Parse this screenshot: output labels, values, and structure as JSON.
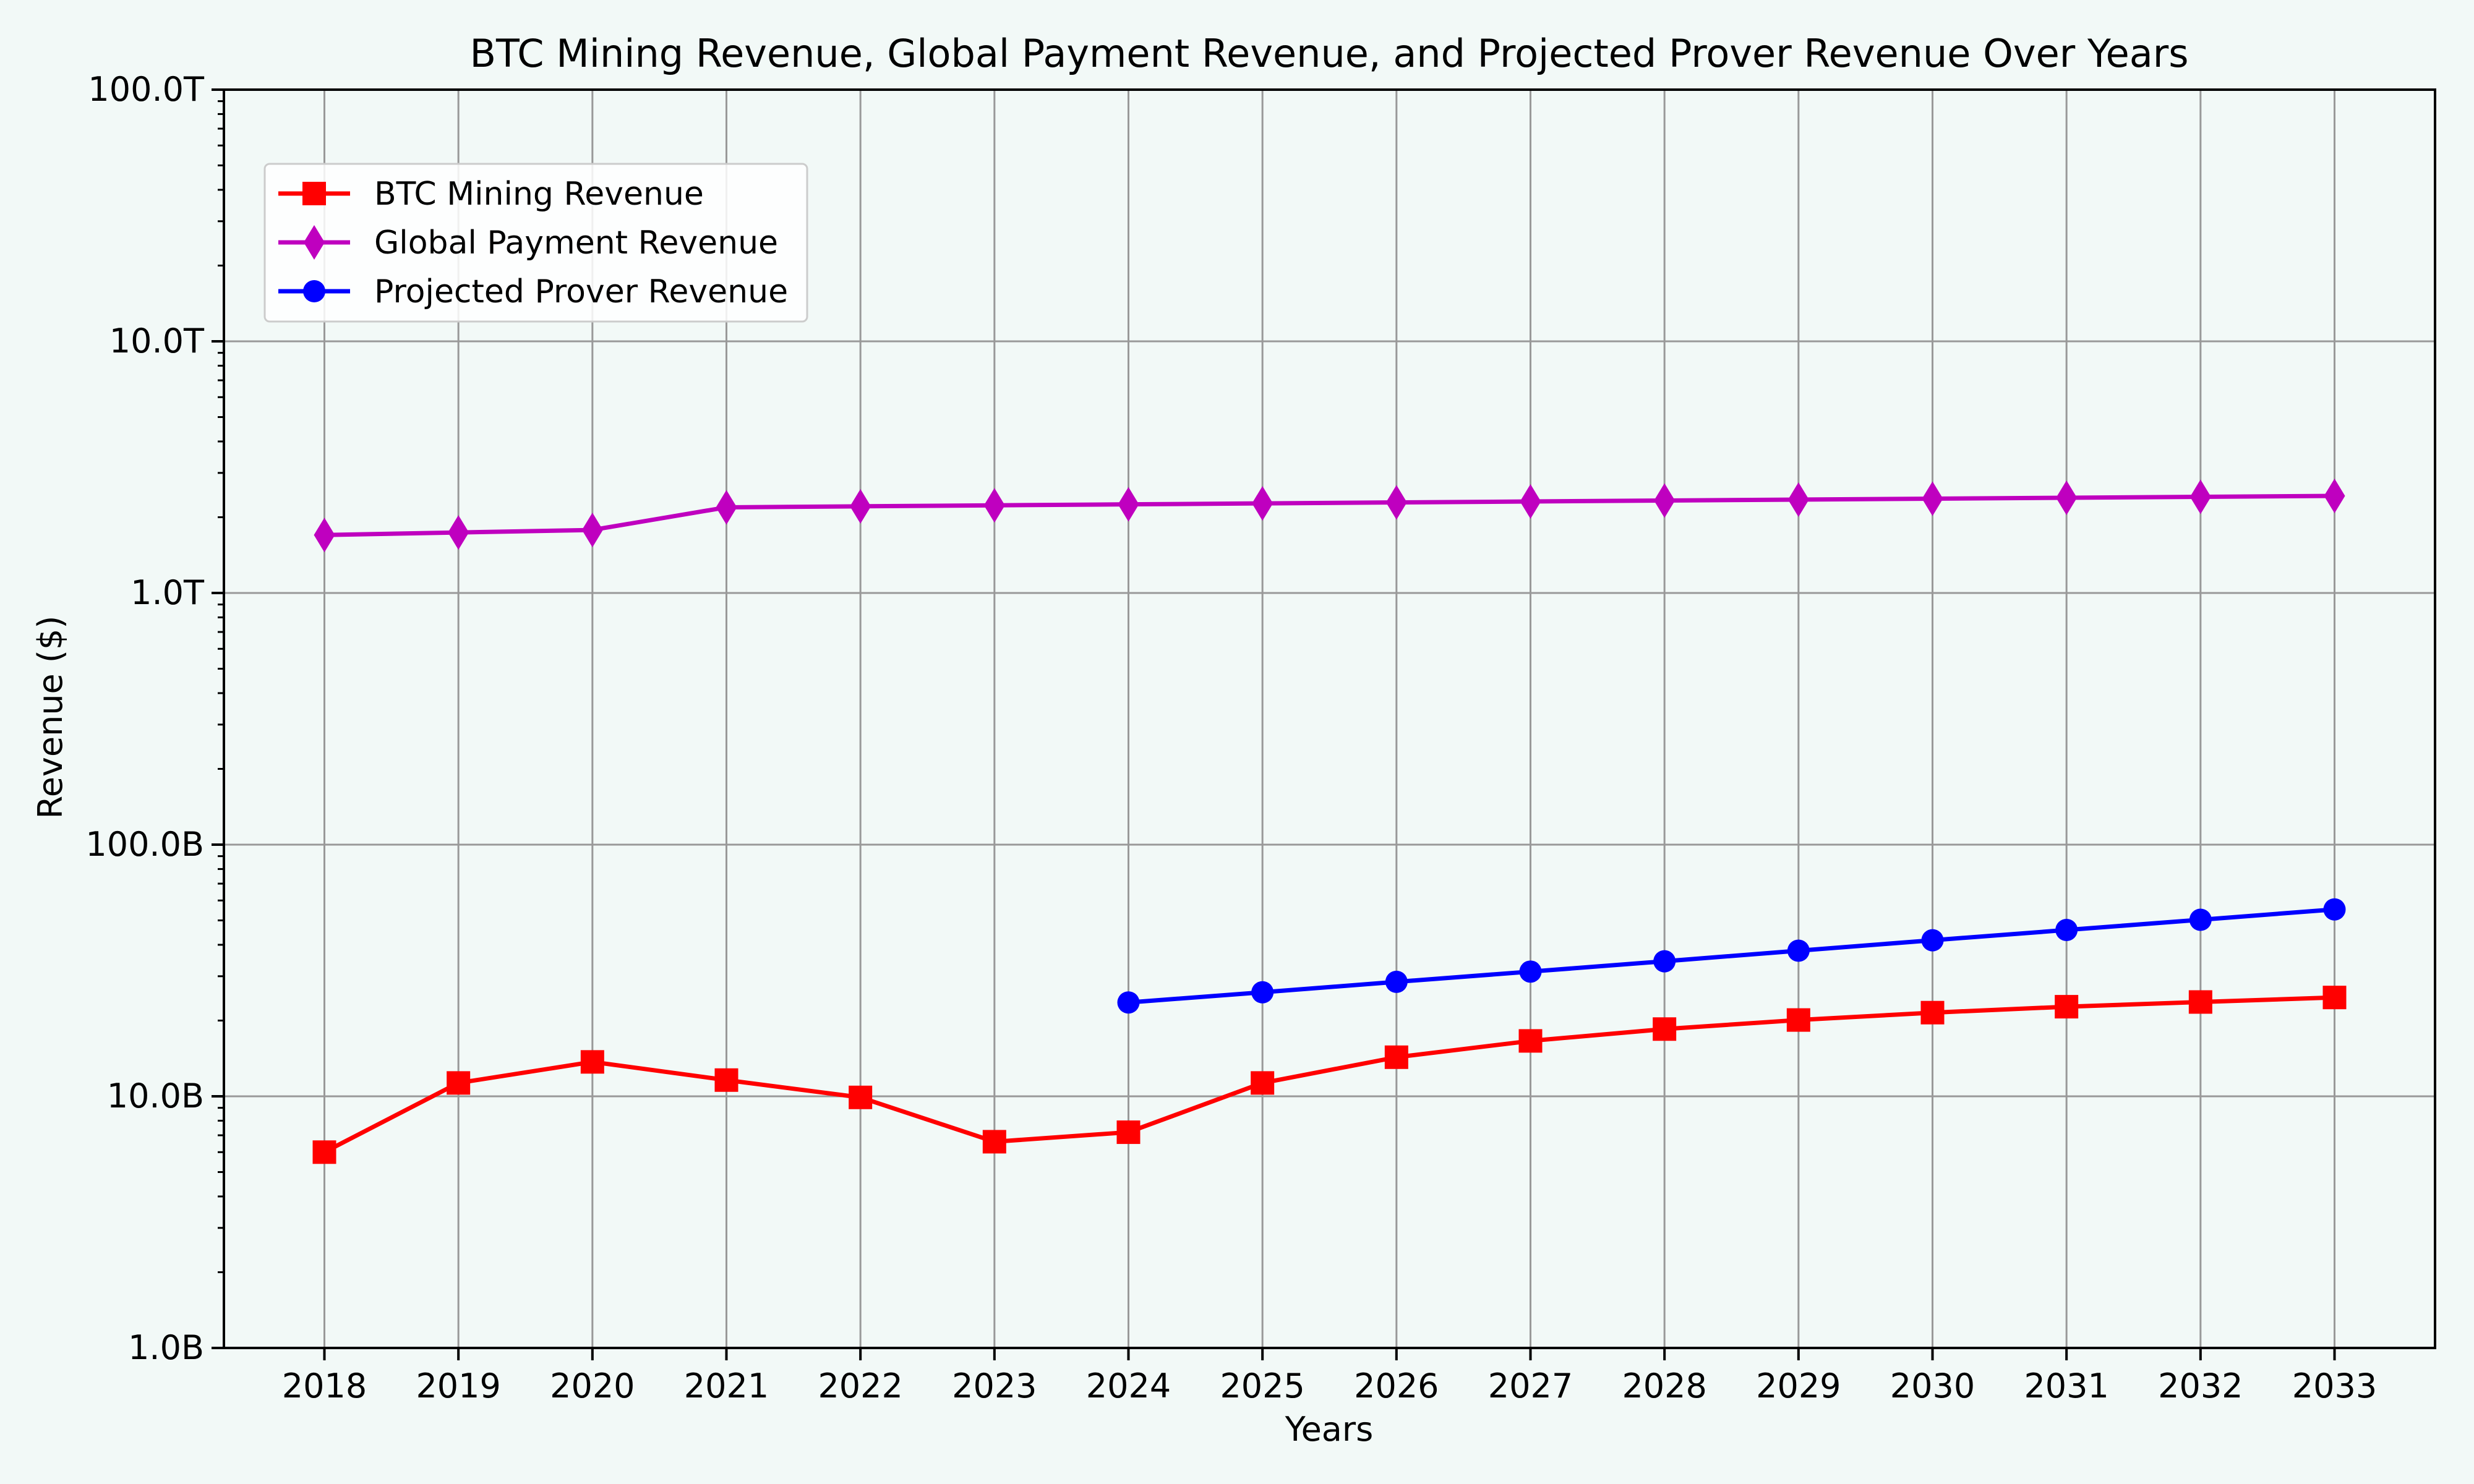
{
  "colors": {
    "background": "#f2f9f7",
    "grid": "#999999",
    "btc": "#ff0000",
    "payment": "#bf00bf",
    "prover": "#0000ff"
  },
  "chart_data": {
    "type": "line",
    "title": "BTC Mining Revenue, Global Payment Revenue, and Projected Prover Revenue Over Years",
    "xlabel": "Years",
    "ylabel": "Revenue ($)",
    "yscale": "log",
    "ylim": [
      1000000000,
      100000000000000
    ],
    "grid": true,
    "legend_position": "upper-left",
    "x_ticks": [
      "2018",
      "2019",
      "2020",
      "2021",
      "2022",
      "2023",
      "2024",
      "2025",
      "2026",
      "2027",
      "2028",
      "2029",
      "2030",
      "2031",
      "2032",
      "2033"
    ],
    "y_ticks": [
      {
        "value": 1000000000,
        "label": "1.0B"
      },
      {
        "value": 10000000000,
        "label": "10.0B"
      },
      {
        "value": 100000000000,
        "label": "100.0B"
      },
      {
        "value": 1000000000000,
        "label": "1.0T"
      },
      {
        "value": 10000000000000,
        "label": "10.0T"
      },
      {
        "value": 100000000000000,
        "label": "100.0T"
      }
    ],
    "series": [
      {
        "name": "BTC Mining Revenue",
        "color": "#ff0000",
        "marker": "square",
        "x": [
          2018,
          2019,
          2020,
          2021,
          2022,
          2023,
          2024,
          2025,
          2026,
          2027,
          2028,
          2029,
          2030,
          2031,
          2032,
          2033
        ],
        "values": [
          6000000000,
          11300000000,
          13700000000,
          11600000000,
          9900000000,
          6600000000,
          7200000000,
          11300000000,
          14300000000,
          16600000000,
          18500000000,
          20100000000,
          21500000000,
          22700000000,
          23700000000,
          24700000000
        ]
      },
      {
        "name": "Global Payment Revenue",
        "color": "#bf00bf",
        "marker": "diamond",
        "x": [
          2018,
          2019,
          2020,
          2021,
          2022,
          2023,
          2024,
          2025,
          2026,
          2027,
          2028,
          2029,
          2030,
          2031,
          2032,
          2033
        ],
        "values": [
          1700000000000,
          1740000000000,
          1780000000000,
          2190000000000,
          2210000000000,
          2230000000000,
          2250000000000,
          2270000000000,
          2290000000000,
          2310000000000,
          2330000000000,
          2350000000000,
          2370000000000,
          2390000000000,
          2410000000000,
          2430000000000
        ]
      },
      {
        "name": "Projected Prover Revenue",
        "color": "#0000ff",
        "marker": "circle",
        "x": [
          2024,
          2025,
          2026,
          2027,
          2028,
          2029,
          2030,
          2031,
          2032,
          2033
        ],
        "values": [
          23600000000,
          25900000000,
          28500000000,
          31300000000,
          34400000000,
          37900000000,
          41700000000,
          45800000000,
          50300000000,
          55300000000
        ]
      }
    ]
  }
}
